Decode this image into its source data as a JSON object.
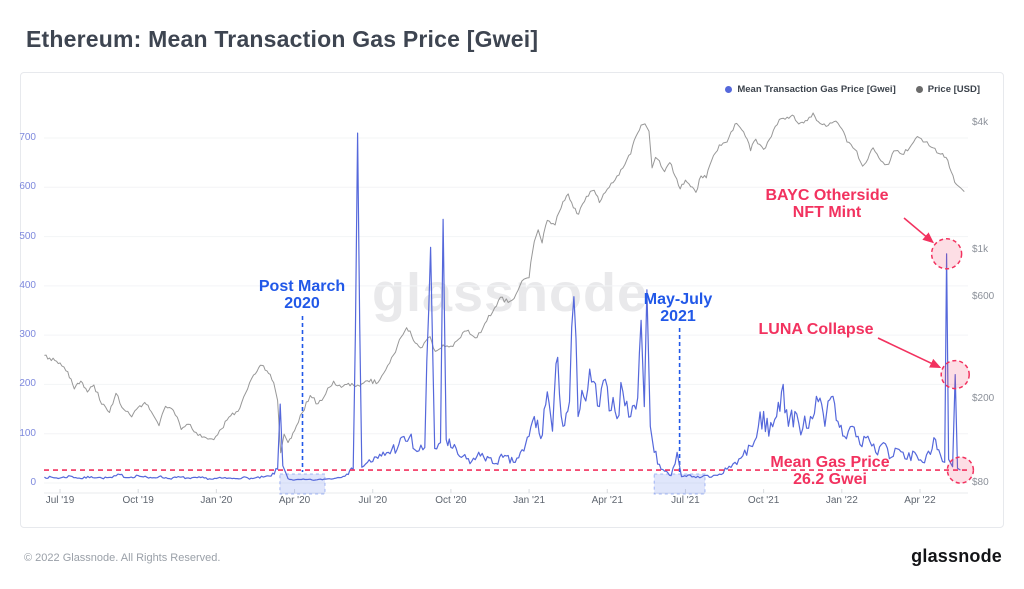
{
  "header": {
    "title": "Ethereum: Mean Transaction Gas Price [Gwei]"
  },
  "legend": [
    {
      "label": "Mean Transaction Gas Price [Gwei]",
      "color": "#5568db"
    },
    {
      "label": "Price [USD]",
      "color": "#6b6b6b"
    }
  ],
  "watermark": "glassnode",
  "footer": {
    "copyright": "© 2022 Glassnode. All Rights Reserved.",
    "brand": "glassnode"
  },
  "colors": {
    "annotation_blue": "#2158e8",
    "annotation_pink": "#f2325f",
    "left_axis_labels": "#7d88dd",
    "right_axis_labels": "#8b9099",
    "x_axis_labels": "#5f6670",
    "gridline": "#f3f4f6",
    "highlight_fill": "rgba(98,132,236,0.20)",
    "highlight_border": "rgba(98,132,236,0.55)"
  },
  "annotations": {
    "post_march": {
      "text": "Post March\n2020"
    },
    "may_july": {
      "text": "May-July\n2021"
    },
    "bayc": {
      "text": "BAYC Otherside\nNFT Mint"
    },
    "luna": {
      "text": "LUNA Collapse"
    },
    "mean_gas": {
      "text": "Mean Gas Price\n26.2 Gwei"
    }
  },
  "chart_data": {
    "type": "line",
    "title": "Ethereum: Mean Transaction Gas Price [Gwei]",
    "x_unit": "months since Jul 2019 (0 = Jul '19)",
    "x_ticks": [
      {
        "m": 0,
        "label": "Jul '19"
      },
      {
        "m": 3,
        "label": "Oct '19"
      },
      {
        "m": 6,
        "label": "Jan '20"
      },
      {
        "m": 9,
        "label": "Apr '20"
      },
      {
        "m": 12,
        "label": "Jul '20"
      },
      {
        "m": 15,
        "label": "Oct '20"
      },
      {
        "m": 18,
        "label": "Jan '21"
      },
      {
        "m": 21,
        "label": "Apr '21"
      },
      {
        "m": 24,
        "label": "Jul '21"
      },
      {
        "m": 27,
        "label": "Oct '21"
      },
      {
        "m": 30,
        "label": "Jan '22"
      },
      {
        "m": 33,
        "label": "Apr '22"
      }
    ],
    "left_axis": {
      "label": "Mean Transaction Gas Price [Gwei]",
      "scale": "linear",
      "range": [
        0,
        760
      ],
      "ticks": [
        0,
        100,
        200,
        300,
        400,
        500,
        600,
        700
      ]
    },
    "right_axis": {
      "label": "Price [USD]",
      "scale": "log",
      "ticks": [
        {
          "value": 4000,
          "label": "$4k"
        },
        {
          "value": 1000,
          "label": "$1k"
        },
        {
          "value": 600,
          "label": "$600"
        },
        {
          "value": 200,
          "label": "$200"
        },
        {
          "value": 80,
          "label": "$80"
        }
      ]
    },
    "grid": "horizontal-faint",
    "legend_position": "top-right",
    "reference_line_gwei": 26.2,
    "highlight_regions": [
      {
        "from_m": 8.44,
        "to_m": 10.17,
        "note": "Post March 2020"
      },
      {
        "from_m": 22.8,
        "to_m": 24.75,
        "note": "May-July 2021"
      }
    ],
    "event_markers": [
      {
        "m": 34.02,
        "gwei": 465,
        "note": "BAYC Otherside NFT Mint"
      },
      {
        "m": 34.35,
        "gwei": 220,
        "note": "LUNA Collapse"
      },
      {
        "m": 34.55,
        "gwei": 26.2,
        "note": "Mean Gas Price 26.2 Gwei"
      }
    ],
    "series": [
      {
        "name": "Mean Transaction Gas Price [Gwei]",
        "axis": "left",
        "color": "#5568db",
        "width": 1.2,
        "points": [
          [
            -0.6,
            12
          ],
          [
            0,
            10
          ],
          [
            0.4,
            14
          ],
          [
            0.8,
            9
          ],
          [
            1.2,
            13
          ],
          [
            1.6,
            10
          ],
          [
            2,
            11
          ],
          [
            2.3,
            17
          ],
          [
            2.6,
            11
          ],
          [
            3,
            15
          ],
          [
            3.4,
            10
          ],
          [
            3.8,
            13
          ],
          [
            4.2,
            9
          ],
          [
            4.6,
            12
          ],
          [
            5,
            9
          ],
          [
            5.4,
            11
          ],
          [
            5.8,
            8
          ],
          [
            6.2,
            10
          ],
          [
            6.6,
            9
          ],
          [
            7,
            11
          ],
          [
            7.4,
            9
          ],
          [
            7.8,
            12
          ],
          [
            8.1,
            14
          ],
          [
            8.35,
            28
          ],
          [
            8.45,
            160
          ],
          [
            8.55,
            35
          ],
          [
            8.75,
            9
          ],
          [
            9,
            6
          ],
          [
            9.4,
            7
          ],
          [
            9.8,
            6
          ],
          [
            10.2,
            8
          ],
          [
            10.6,
            10
          ],
          [
            11,
            18
          ],
          [
            11.25,
            28
          ],
          [
            11.42,
            710
          ],
          [
            11.58,
            32
          ],
          [
            11.8,
            42
          ],
          [
            12.2,
            50
          ],
          [
            12.6,
            62
          ],
          [
            13,
            78
          ],
          [
            13.4,
            92
          ],
          [
            13.7,
            64
          ],
          [
            14,
            72
          ],
          [
            14.22,
            478
          ],
          [
            14.38,
            70
          ],
          [
            14.6,
            82
          ],
          [
            14.7,
            535
          ],
          [
            14.82,
            88
          ],
          [
            15,
            72
          ],
          [
            15.4,
            52
          ],
          [
            15.8,
            44
          ],
          [
            16.2,
            60
          ],
          [
            16.6,
            40
          ],
          [
            17,
            52
          ],
          [
            17.4,
            42
          ],
          [
            17.8,
            65
          ],
          [
            18,
            95
          ],
          [
            18.2,
            135
          ],
          [
            18.45,
            90
          ],
          [
            18.7,
            185
          ],
          [
            18.9,
            105
          ],
          [
            19.1,
            255
          ],
          [
            19.3,
            115
          ],
          [
            19.55,
            165
          ],
          [
            19.72,
            378
          ],
          [
            19.88,
            135
          ],
          [
            20.1,
            175
          ],
          [
            20.4,
            205
          ],
          [
            20.7,
            155
          ],
          [
            21,
            195
          ],
          [
            21.3,
            145
          ],
          [
            21.6,
            185
          ],
          [
            21.9,
            135
          ],
          [
            22.1,
            150
          ],
          [
            22.3,
            330
          ],
          [
            22.42,
            155
          ],
          [
            22.52,
            392
          ],
          [
            22.65,
            115
          ],
          [
            22.8,
            62
          ],
          [
            23,
            38
          ],
          [
            23.2,
            24
          ],
          [
            23.45,
            15
          ],
          [
            23.68,
            62
          ],
          [
            23.85,
            13
          ],
          [
            24.1,
            16
          ],
          [
            24.4,
            11
          ],
          [
            24.7,
            15
          ],
          [
            25,
            12
          ],
          [
            25.3,
            18
          ],
          [
            25.6,
            28
          ],
          [
            25.9,
            42
          ],
          [
            26.2,
            55
          ],
          [
            26.5,
            75
          ],
          [
            26.8,
            115
          ],
          [
            27,
            145
          ],
          [
            27.2,
            95
          ],
          [
            27.5,
            135
          ],
          [
            27.75,
            200
          ],
          [
            27.95,
            115
          ],
          [
            28.2,
            145
          ],
          [
            28.5,
            110
          ],
          [
            28.8,
            135
          ],
          [
            29.1,
            165
          ],
          [
            29.35,
            115
          ],
          [
            29.6,
            175
          ],
          [
            29.85,
            125
          ],
          [
            30.1,
            95
          ],
          [
            30.4,
            115
          ],
          [
            30.7,
            78
          ],
          [
            31,
            95
          ],
          [
            31.3,
            62
          ],
          [
            31.6,
            82
          ],
          [
            31.9,
            52
          ],
          [
            32.2,
            68
          ],
          [
            32.5,
            48
          ],
          [
            32.8,
            62
          ],
          [
            33.1,
            42
          ],
          [
            33.4,
            58
          ],
          [
            33.6,
            88
          ],
          [
            33.78,
            58
          ],
          [
            33.95,
            42
          ],
          [
            34.02,
            465
          ],
          [
            34.1,
            48
          ],
          [
            34.25,
            33
          ],
          [
            34.35,
            220
          ],
          [
            34.44,
            30
          ],
          [
            34.55,
            26.2
          ]
        ]
      },
      {
        "name": "Price [USD]",
        "axis": "right",
        "color": "#989898",
        "width": 1,
        "points": [
          [
            -0.6,
            320
          ],
          [
            0,
            295
          ],
          [
            0.3,
            268
          ],
          [
            0.55,
            222
          ],
          [
            0.8,
            242
          ],
          [
            1.05,
            215
          ],
          [
            1.3,
            232
          ],
          [
            1.6,
            188
          ],
          [
            1.9,
            172
          ],
          [
            2.15,
            212
          ],
          [
            2.45,
            178
          ],
          [
            2.75,
            164
          ],
          [
            3,
            182
          ],
          [
            3.25,
            192
          ],
          [
            3.5,
            174
          ],
          [
            3.8,
            149
          ],
          [
            4.05,
            184
          ],
          [
            4.35,
            176
          ],
          [
            4.65,
            143
          ],
          [
            5,
            151
          ],
          [
            5.3,
            134
          ],
          [
            5.6,
            131
          ],
          [
            5.9,
            128
          ],
          [
            6.2,
            144
          ],
          [
            6.55,
            166
          ],
          [
            6.9,
            180
          ],
          [
            7.2,
            222
          ],
          [
            7.5,
            262
          ],
          [
            7.75,
            287
          ],
          [
            8,
            263
          ],
          [
            8.2,
            238
          ],
          [
            8.35,
            196
          ],
          [
            8.47,
            111
          ],
          [
            8.6,
            136
          ],
          [
            8.75,
            124
          ],
          [
            9,
            141
          ],
          [
            9.3,
            172
          ],
          [
            9.6,
            207
          ],
          [
            9.9,
            189
          ],
          [
            10.2,
            211
          ],
          [
            10.5,
            242
          ],
          [
            10.8,
            226
          ],
          [
            11.2,
            236
          ],
          [
            11.5,
            229
          ],
          [
            11.8,
            243
          ],
          [
            12.2,
            238
          ],
          [
            12.5,
            274
          ],
          [
            12.8,
            322
          ],
          [
            13.1,
            392
          ],
          [
            13.3,
            432
          ],
          [
            13.5,
            394
          ],
          [
            13.7,
            363
          ],
          [
            13.9,
            349
          ],
          [
            14.2,
            392
          ],
          [
            14.4,
            334
          ],
          [
            14.7,
            359
          ],
          [
            15,
            354
          ],
          [
            15.3,
            382
          ],
          [
            15.6,
            417
          ],
          [
            16,
            388
          ],
          [
            16.3,
            452
          ],
          [
            16.6,
            512
          ],
          [
            16.9,
            601
          ],
          [
            17.2,
            568
          ],
          [
            17.5,
            622
          ],
          [
            17.8,
            732
          ],
          [
            18,
            744
          ],
          [
            18.2,
            1102
          ],
          [
            18.35,
            1252
          ],
          [
            18.5,
            1084
          ],
          [
            18.7,
            1386
          ],
          [
            19,
            1318
          ],
          [
            19.3,
            1702
          ],
          [
            19.5,
            1848
          ],
          [
            19.7,
            1588
          ],
          [
            19.9,
            1482
          ],
          [
            20.2,
            1798
          ],
          [
            20.5,
            1922
          ],
          [
            20.7,
            1682
          ],
          [
            21,
            1948
          ],
          [
            21.3,
            2152
          ],
          [
            21.6,
            2448
          ],
          [
            21.9,
            2852
          ],
          [
            22.1,
            3448
          ],
          [
            22.3,
            3902
          ],
          [
            22.45,
            3952
          ],
          [
            22.6,
            3648
          ],
          [
            22.72,
            2452
          ],
          [
            22.85,
            2748
          ],
          [
            23,
            2648
          ],
          [
            23.2,
            2352
          ],
          [
            23.4,
            2598
          ],
          [
            23.6,
            2248
          ],
          [
            23.8,
            1952
          ],
          [
            24,
            2148
          ],
          [
            24.2,
            1998
          ],
          [
            24.4,
            1878
          ],
          [
            24.6,
            2248
          ],
          [
            24.8,
            2198
          ],
          [
            25,
            2648
          ],
          [
            25.3,
            3148
          ],
          [
            25.6,
            3248
          ],
          [
            25.9,
            3948
          ],
          [
            26.1,
            3798
          ],
          [
            26.3,
            3448
          ],
          [
            26.5,
            2952
          ],
          [
            26.7,
            3348
          ],
          [
            27,
            2998
          ],
          [
            27.3,
            3448
          ],
          [
            27.6,
            4148
          ],
          [
            27.9,
            4252
          ],
          [
            28.1,
            4348
          ],
          [
            28.35,
            3948
          ],
          [
            28.6,
            4098
          ],
          [
            28.9,
            4448
          ],
          [
            29.1,
            4052
          ],
          [
            29.4,
            3848
          ],
          [
            29.7,
            4052
          ],
          [
            30,
            3748
          ],
          [
            30.2,
            3248
          ],
          [
            30.5,
            2998
          ],
          [
            30.8,
            2498
          ],
          [
            31,
            2698
          ],
          [
            31.2,
            3048
          ],
          [
            31.5,
            2648
          ],
          [
            31.8,
            2548
          ],
          [
            32,
            2948
          ],
          [
            32.3,
            2848
          ],
          [
            32.6,
            3048
          ],
          [
            32.9,
            3448
          ],
          [
            33.2,
            3248
          ],
          [
            33.5,
            3048
          ],
          [
            33.8,
            2848
          ],
          [
            34,
            2748
          ],
          [
            34.2,
            2348
          ],
          [
            34.4,
            2048
          ],
          [
            34.55,
            1978
          ],
          [
            34.7,
            1895
          ]
        ]
      }
    ]
  }
}
